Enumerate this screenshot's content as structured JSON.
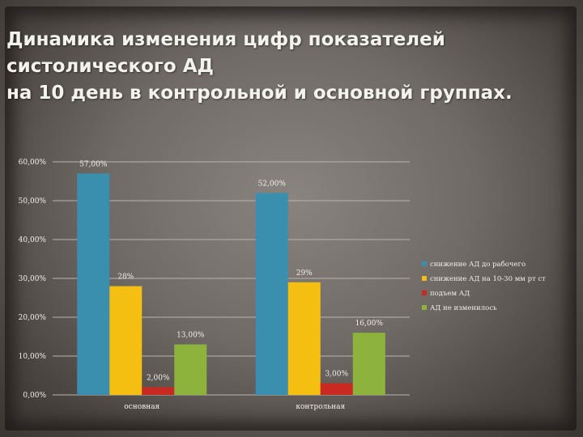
{
  "title_lines": [
    "Динамика изменения цифр показателей",
    "систолического АД",
    "на 10 день в контрольной и основной группах."
  ],
  "chart_data": {
    "type": "bar",
    "categories": [
      "основная",
      "контрольная"
    ],
    "ylim": [
      0,
      60
    ],
    "yticks": [
      "0,00%",
      "10,00%",
      "20,00%",
      "30,00%",
      "40,00%",
      "50,00%",
      "60,00%"
    ],
    "grid": true,
    "legend_position": "right",
    "series": [
      {
        "name": "снижение АД до рабочего",
        "color": "#3b8fae",
        "values": [
          57,
          52
        ],
        "labels": [
          "57,00%",
          "52,00%"
        ]
      },
      {
        "name": "снижение АД на 10-30 мм рт ст",
        "color": "#f5bf12",
        "values": [
          28,
          29
        ],
        "labels": [
          "28%",
          "29%"
        ]
      },
      {
        "name": "подъем АД",
        "color": "#c82a22",
        "values": [
          2,
          3
        ],
        "labels": [
          "2,00%",
          "3,00%"
        ]
      },
      {
        "name": "АД не изменилось",
        "color": "#8db33c",
        "values": [
          13,
          16
        ],
        "labels": [
          "13,00%",
          "16,00%"
        ]
      }
    ]
  }
}
